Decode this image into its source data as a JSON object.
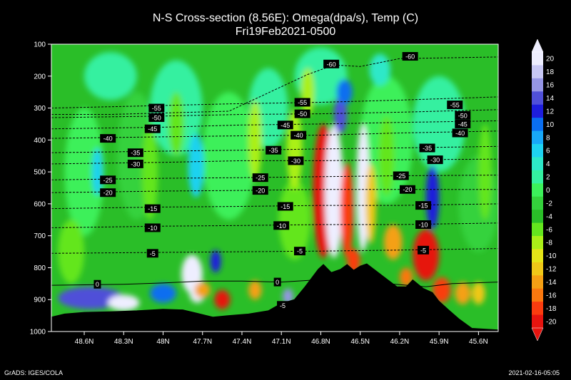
{
  "chart_data": {
    "type": "heatmap",
    "title": "N-S Cross-section (8.56E): Omega(dpa/s), Temp (C)",
    "subtitle": "Fri19Feb2021-0500",
    "x_ticks": [
      "48.6N",
      "48.3N",
      "48N",
      "47.7N",
      "47.4N",
      "47.1N",
      "46.8N",
      "46.5N",
      "46.2N",
      "45.9N",
      "45.6N"
    ],
    "x_range": [
      48.85,
      45.45
    ],
    "y_ticks": [
      100,
      200,
      300,
      400,
      500,
      600,
      700,
      800,
      900,
      1000
    ],
    "y_range": [
      100,
      1000
    ],
    "colorbar": {
      "levels": [
        20,
        18,
        16,
        14,
        12,
        10,
        8,
        6,
        4,
        2,
        0,
        -2,
        -4,
        -6,
        -8,
        -10,
        -12,
        -14,
        -16,
        -18,
        -20
      ],
      "colors": [
        "#eeeeff",
        "#c8c8f5",
        "#9696e6",
        "#5050d8",
        "#1e1edc",
        "#0a6ef0",
        "#18a8f8",
        "#1ed2f0",
        "#2de8c8",
        "#34f0a0",
        "#3cf05a",
        "#34d23c",
        "#2abe28",
        "#64e61e",
        "#aaf018",
        "#e6e618",
        "#f0c818",
        "#f5a014",
        "#fa780f",
        "#fa3c0f",
        "#e6140f"
      ]
    },
    "temperature_contours": [
      {
        "label": "-60",
        "p": [
          [
            48.85,
            320
          ],
          [
            48.4,
            320
          ],
          [
            47.5,
            310
          ],
          [
            46.9,
            195
          ],
          [
            46.7,
            165
          ],
          [
            46.5,
            170
          ],
          [
            46.2,
            145
          ],
          [
            45.45,
            140
          ]
        ]
      },
      {
        "label": "-55",
        "p": [
          [
            48.85,
            300
          ],
          [
            48.0,
            292
          ],
          [
            47.5,
            287
          ],
          [
            46.8,
            282
          ],
          [
            46.2,
            275
          ],
          [
            45.45,
            265
          ]
        ]
      },
      {
        "label": "-50",
        "p": [
          [
            48.85,
            330
          ],
          [
            48.0,
            325
          ],
          [
            47.4,
            320
          ],
          [
            46.8,
            318
          ],
          [
            46.2,
            313
          ],
          [
            45.45,
            305
          ]
        ]
      },
      {
        "label": "-45",
        "p": [
          [
            48.85,
            365
          ],
          [
            48.0,
            360
          ],
          [
            47.4,
            353
          ],
          [
            46.8,
            350
          ],
          [
            46.2,
            345
          ],
          [
            45.45,
            340
          ]
        ]
      },
      {
        "label": "-40",
        "p": [
          [
            48.85,
            395
          ],
          [
            48.0,
            390
          ],
          [
            47.4,
            387
          ],
          [
            46.8,
            385
          ],
          [
            46.2,
            378
          ],
          [
            45.45,
            372
          ]
        ]
      },
      {
        "label": "-35",
        "p": [
          [
            48.85,
            440
          ],
          [
            48.0,
            435
          ],
          [
            47.4,
            432
          ],
          [
            46.8,
            428
          ],
          [
            46.2,
            425
          ],
          [
            45.45,
            420
          ]
        ]
      },
      {
        "label": "-30",
        "p": [
          [
            48.85,
            475
          ],
          [
            48.0,
            470
          ],
          [
            47.4,
            465
          ],
          [
            46.8,
            465
          ],
          [
            46.2,
            462
          ],
          [
            45.45,
            460
          ]
        ]
      },
      {
        "label": "-25",
        "p": [
          [
            48.85,
            525
          ],
          [
            48.0,
            520
          ],
          [
            47.4,
            518
          ],
          [
            46.8,
            515
          ],
          [
            46.2,
            512
          ],
          [
            45.45,
            510
          ]
        ]
      },
      {
        "label": "-20",
        "p": [
          [
            48.85,
            565
          ],
          [
            48.0,
            560
          ],
          [
            47.4,
            558
          ],
          [
            46.8,
            555
          ],
          [
            46.2,
            555
          ],
          [
            45.45,
            555
          ]
        ]
      },
      {
        "label": "-15",
        "p": [
          [
            48.85,
            615
          ],
          [
            48.0,
            610
          ],
          [
            47.4,
            608
          ],
          [
            46.8,
            605
          ],
          [
            46.2,
            605
          ],
          [
            45.45,
            600
          ]
        ]
      },
      {
        "label": "-10",
        "p": [
          [
            48.85,
            675
          ],
          [
            48.0,
            670
          ],
          [
            47.4,
            668
          ],
          [
            46.8,
            665
          ],
          [
            46.2,
            665
          ],
          [
            45.45,
            660
          ]
        ]
      },
      {
        "label": "-5",
        "p": [
          [
            48.85,
            755
          ],
          [
            48.0,
            752
          ],
          [
            47.4,
            750
          ],
          [
            46.8,
            748
          ],
          [
            46.2,
            745
          ],
          [
            45.45,
            740
          ]
        ]
      },
      {
        "label": "0",
        "p": [
          [
            48.85,
            855
          ],
          [
            48.3,
            852
          ],
          [
            48.0,
            848
          ],
          [
            47.7,
            842
          ],
          [
            47.4,
            842
          ],
          [
            47.1,
            845
          ],
          [
            46.9,
            840
          ],
          [
            46.6,
            830
          ],
          [
            46.3,
            850
          ],
          [
            46.0,
            860
          ],
          [
            45.8,
            850
          ],
          [
            45.45,
            845
          ]
        ]
      },
      {
        "label": "-5",
        "p": [
          [
            47.1,
            925
          ],
          [
            47.0,
            915
          ],
          [
            46.9,
            905
          ]
        ]
      }
    ],
    "labels": [
      {
        "text": "-60",
        "lat": 46.72,
        "p": 162
      },
      {
        "text": "-60",
        "lat": 46.12,
        "p": 138
      },
      {
        "text": "-55",
        "lat": 48.05,
        "p": 300
      },
      {
        "text": "-55",
        "lat": 46.94,
        "p": 282
      },
      {
        "text": "-55",
        "lat": 45.78,
        "p": 290
      },
      {
        "text": "-50",
        "lat": 48.05,
        "p": 330
      },
      {
        "text": "-50",
        "lat": 46.94,
        "p": 318
      },
      {
        "text": "-50",
        "lat": 45.72,
        "p": 323
      },
      {
        "text": "-45",
        "lat": 48.08,
        "p": 365
      },
      {
        "text": "-45",
        "lat": 47.07,
        "p": 353
      },
      {
        "text": "-45",
        "lat": 45.72,
        "p": 350
      },
      {
        "text": "-40",
        "lat": 48.42,
        "p": 395
      },
      {
        "text": "-40",
        "lat": 46.97,
        "p": 385
      },
      {
        "text": "-40",
        "lat": 45.74,
        "p": 378
      },
      {
        "text": "-35",
        "lat": 48.21,
        "p": 440
      },
      {
        "text": "-35",
        "lat": 47.16,
        "p": 432
      },
      {
        "text": "-35",
        "lat": 45.99,
        "p": 425
      },
      {
        "text": "-30",
        "lat": 48.21,
        "p": 475
      },
      {
        "text": "-30",
        "lat": 46.99,
        "p": 465
      },
      {
        "text": "-30",
        "lat": 45.93,
        "p": 462
      },
      {
        "text": "-25",
        "lat": 48.42,
        "p": 525
      },
      {
        "text": "-25",
        "lat": 47.26,
        "p": 518
      },
      {
        "text": "-25",
        "lat": 46.19,
        "p": 512
      },
      {
        "text": "-20",
        "lat": 48.42,
        "p": 565
      },
      {
        "text": "-20",
        "lat": 47.26,
        "p": 558
      },
      {
        "text": "-20",
        "lat": 46.14,
        "p": 555
      },
      {
        "text": "-15",
        "lat": 48.08,
        "p": 615
      },
      {
        "text": "-15",
        "lat": 47.07,
        "p": 608
      },
      {
        "text": "-15",
        "lat": 46.02,
        "p": 605
      },
      {
        "text": "-10",
        "lat": 48.08,
        "p": 675
      },
      {
        "text": "-10",
        "lat": 47.1,
        "p": 668
      },
      {
        "text": "-10",
        "lat": 46.02,
        "p": 665
      },
      {
        "text": "-5",
        "lat": 48.08,
        "p": 755
      },
      {
        "text": "-5",
        "lat": 46.96,
        "p": 748
      },
      {
        "text": "-5",
        "lat": 46.02,
        "p": 745
      },
      {
        "text": "0",
        "lat": 48.5,
        "p": 852
      },
      {
        "text": "0",
        "lat": 47.13,
        "p": 845
      },
      {
        "text": "-5",
        "lat": 47.09,
        "p": 918
      }
    ],
    "terrain": [
      [
        48.85,
        955
      ],
      [
        48.75,
        945
      ],
      [
        48.6,
        940
      ],
      [
        48.4,
        938
      ],
      [
        48.2,
        935
      ],
      [
        48.0,
        930
      ],
      [
        47.85,
        932
      ],
      [
        47.75,
        942
      ],
      [
        47.62,
        955
      ],
      [
        47.5,
        950
      ],
      [
        47.35,
        945
      ],
      [
        47.2,
        935
      ],
      [
        47.1,
        912
      ],
      [
        47.0,
        900
      ],
      [
        46.92,
        860
      ],
      [
        46.82,
        805
      ],
      [
        46.78,
        790
      ],
      [
        46.72,
        815
      ],
      [
        46.65,
        805
      ],
      [
        46.6,
        790
      ],
      [
        46.55,
        808
      ],
      [
        46.5,
        795
      ],
      [
        46.45,
        788
      ],
      [
        46.38,
        810
      ],
      [
        46.3,
        835
      ],
      [
        46.22,
        860
      ],
      [
        46.15,
        860
      ],
      [
        46.1,
        838
      ],
      [
        46.02,
        865
      ],
      [
        45.95,
        878
      ],
      [
        45.9,
        905
      ],
      [
        45.82,
        935
      ],
      [
        45.75,
        960
      ],
      [
        45.65,
        990
      ],
      [
        45.45,
        995
      ]
    ],
    "features": [
      {
        "lat": 46.78,
        "p": 560,
        "w": 0.08,
        "h": 420,
        "v": -20
      },
      {
        "lat": 46.7,
        "p": 560,
        "w": 0.07,
        "h": 420,
        "v": 20
      },
      {
        "lat": 46.6,
        "p": 620,
        "w": 0.05,
        "h": 300,
        "v": -18
      },
      {
        "lat": 46.48,
        "p": 550,
        "w": 0.05,
        "h": 400,
        "v": 20
      },
      {
        "lat": 46.42,
        "p": 600,
        "w": 0.04,
        "h": 250,
        "v": -12
      },
      {
        "lat": 46.65,
        "p": 320,
        "w": 0.05,
        "h": 120,
        "v": 14
      },
      {
        "lat": 46.62,
        "p": 250,
        "w": 0.06,
        "h": 80,
        "v": 10
      },
      {
        "lat": 47.78,
        "p": 820,
        "w": 0.08,
        "h": 120,
        "v": 20
      },
      {
        "lat": 47.74,
        "p": 880,
        "w": 0.06,
        "h": 60,
        "v": 20
      },
      {
        "lat": 47.7,
        "p": 870,
        "w": 0.06,
        "h": 50,
        "v": -14
      },
      {
        "lat": 47.55,
        "p": 900,
        "w": 0.06,
        "h": 60,
        "v": -20
      },
      {
        "lat": 47.6,
        "p": 780,
        "w": 0.04,
        "h": 70,
        "v": 12
      },
      {
        "lat": 48.55,
        "p": 895,
        "w": 0.25,
        "h": 70,
        "v": 14
      },
      {
        "lat": 48.3,
        "p": 910,
        "w": 0.12,
        "h": 50,
        "v": 20
      },
      {
        "lat": 48.0,
        "p": 880,
        "w": 0.1,
        "h": 60,
        "v": 10
      },
      {
        "lat": 47.3,
        "p": 870,
        "w": 0.05,
        "h": 60,
        "v": -14
      },
      {
        "lat": 47.05,
        "p": 890,
        "w": 0.04,
        "h": 50,
        "v": 16
      },
      {
        "lat": 46.0,
        "p": 760,
        "w": 0.1,
        "h": 160,
        "v": -20
      },
      {
        "lat": 45.88,
        "p": 870,
        "w": 0.07,
        "h": 80,
        "v": -18
      },
      {
        "lat": 45.72,
        "p": 880,
        "w": 0.06,
        "h": 70,
        "v": -14
      },
      {
        "lat": 45.6,
        "p": 880,
        "w": 0.05,
        "h": 70,
        "v": -12
      },
      {
        "lat": 45.95,
        "p": 580,
        "w": 0.05,
        "h": 200,
        "v": 12
      },
      {
        "lat": 46.25,
        "p": 720,
        "w": 0.07,
        "h": 110,
        "v": -14
      },
      {
        "lat": 46.15,
        "p": 830,
        "w": 0.05,
        "h": 60,
        "v": -16
      },
      {
        "lat": 46.55,
        "p": 780,
        "w": 0.05,
        "h": 80,
        "v": -18
      },
      {
        "lat": 48.5,
        "p": 500,
        "w": 0.04,
        "h": 150,
        "v": 6
      },
      {
        "lat": 48.1,
        "p": 500,
        "w": 0.06,
        "h": 300,
        "v": -6
      },
      {
        "lat": 47.9,
        "p": 350,
        "w": 0.06,
        "h": 200,
        "v": -6
      },
      {
        "lat": 47.3,
        "p": 400,
        "w": 0.05,
        "h": 250,
        "v": -8
      },
      {
        "lat": 47.0,
        "p": 430,
        "w": 0.06,
        "h": 250,
        "v": -8
      },
      {
        "lat": 46.3,
        "p": 450,
        "w": 0.06,
        "h": 250,
        "v": -6
      },
      {
        "lat": 45.55,
        "p": 500,
        "w": 0.05,
        "h": 300,
        "v": -6
      },
      {
        "lat": 47.75,
        "p": 480,
        "w": 0.06,
        "h": 200,
        "v": 6
      },
      {
        "lat": 46.9,
        "p": 250,
        "w": 0.05,
        "h": 150,
        "v": -8
      },
      {
        "lat": 46.35,
        "p": 180,
        "w": 0.08,
        "h": 100,
        "v": 4
      }
    ]
  },
  "footer": {
    "credit": "GrADS: IGES/COLA",
    "timestamp": "2021-02-16-05:05"
  }
}
